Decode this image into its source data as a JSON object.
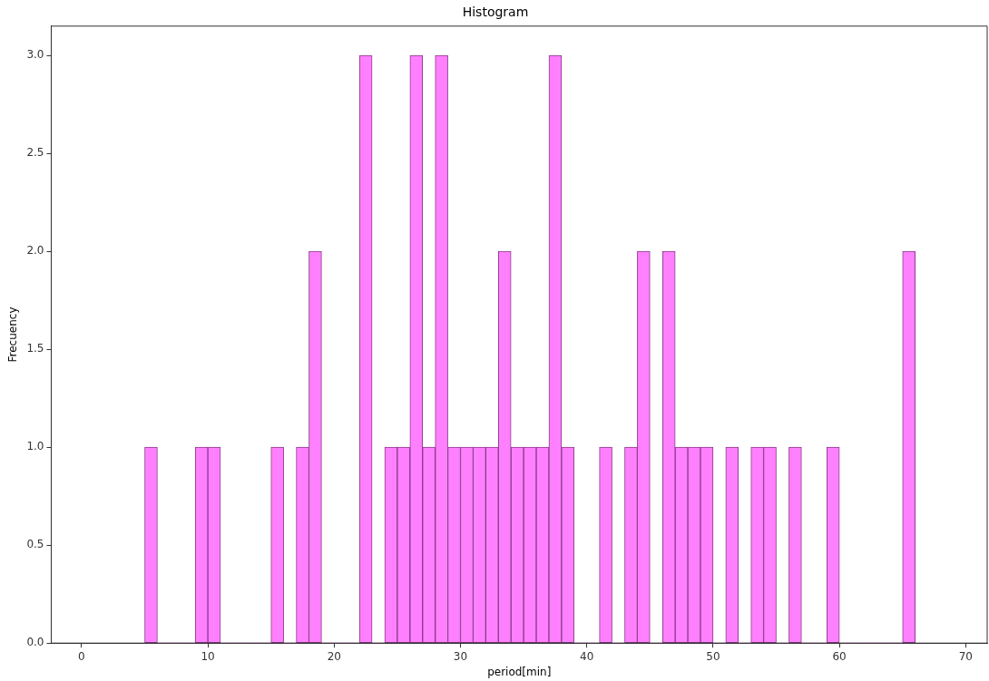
{
  "chart_data": {
    "type": "histogram",
    "title": "Histogram",
    "xlabel": "period[min]",
    "ylabel": "Frecuency",
    "bins": [
      5,
      6,
      7,
      8,
      9,
      10,
      11,
      12,
      13,
      14,
      15,
      16,
      17,
      18,
      19,
      20,
      21,
      22,
      23,
      24,
      25,
      26,
      27,
      28,
      29,
      30,
      31,
      32,
      33,
      34,
      35,
      36,
      37,
      38,
      39,
      40,
      41,
      42,
      43,
      44,
      45,
      46,
      47,
      48,
      49,
      50,
      51,
      52,
      53,
      54,
      55,
      56,
      57,
      58,
      59,
      60,
      61,
      62,
      63,
      64,
      65,
      66
    ],
    "values": [
      1,
      0,
      0,
      0,
      1,
      1,
      0,
      0,
      0,
      0,
      1,
      0,
      1,
      2,
      0,
      0,
      0,
      3,
      0,
      1,
      1,
      3,
      1,
      3,
      1,
      1,
      1,
      1,
      2,
      1,
      1,
      1,
      3,
      1,
      0,
      0,
      1,
      0,
      1,
      2,
      0,
      2,
      1,
      1,
      1,
      0,
      1,
      0,
      1,
      1,
      0,
      1,
      0,
      0,
      1,
      0,
      0,
      0,
      0,
      0,
      2
    ],
    "color": "#ff80ff",
    "xlim": [
      -2.4,
      71.7
    ],
    "xticks": [
      0,
      10,
      20,
      30,
      40,
      50,
      60,
      70
    ],
    "ylim": [
      0,
      3.15
    ],
    "yticks": [
      {
        "value": 0,
        "label": "0.0"
      },
      {
        "value": 0.5,
        "label": "0.5"
      },
      {
        "value": 1,
        "label": "1.0"
      },
      {
        "value": 1.5,
        "label": "1.5"
      },
      {
        "value": 2,
        "label": "2.0"
      },
      {
        "value": 2.5,
        "label": "2.5"
      },
      {
        "value": 3,
        "label": "3.0"
      }
    ],
    "grid": false,
    "legend": false
  }
}
